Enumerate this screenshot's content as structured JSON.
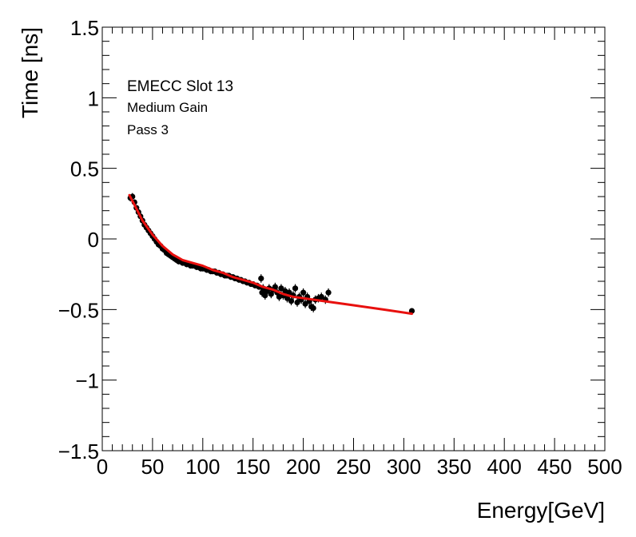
{
  "chart_data": {
    "type": "scatter",
    "title": "",
    "xlabel": "Energy[GeV]",
    "ylabel": "Time [ns]",
    "xlim": [
      0,
      500
    ],
    "ylim": [
      -1.5,
      1.5
    ],
    "x_ticks": [
      0,
      50,
      100,
      150,
      200,
      250,
      300,
      350,
      400,
      450,
      500
    ],
    "x_tick_labels": [
      "0",
      "50",
      "100",
      "150",
      "200",
      "250",
      "300",
      "350",
      "400",
      "450",
      "500"
    ],
    "y_ticks": [
      -1.5,
      -1,
      -0.5,
      0,
      0.5,
      1,
      1.5
    ],
    "y_tick_labels": [
      "−1.5",
      "−1",
      "−0.5",
      "0",
      "0.5",
      "1",
      "1.5"
    ],
    "grid": false,
    "annotations": [
      "EMECC Slot 13",
      "Medium Gain",
      "Pass 3"
    ],
    "series": [
      {
        "name": "data",
        "kind": "points-with-errors",
        "color": "#000000",
        "x": [
          28,
          30,
          32,
          34,
          36,
          38,
          40,
          42,
          44,
          46,
          48,
          50,
          52,
          54,
          56,
          58,
          60,
          62,
          64,
          66,
          68,
          70,
          72,
          74,
          76,
          78,
          80,
          82,
          84,
          86,
          88,
          90,
          92,
          94,
          96,
          98,
          100,
          102,
          104,
          106,
          108,
          110,
          112,
          114,
          116,
          118,
          120,
          122,
          124,
          126,
          128,
          130,
          132,
          134,
          136,
          138,
          140,
          142,
          144,
          146,
          148,
          150,
          152,
          154,
          156,
          158,
          159,
          160,
          162,
          164,
          166,
          168,
          170,
          172,
          174,
          176,
          178,
          180,
          182,
          184,
          186,
          188,
          190,
          192,
          194,
          196,
          198,
          200,
          202,
          204,
          206,
          208,
          210,
          212,
          215,
          218,
          222,
          225,
          308
        ],
        "y": [
          0.29,
          0.3,
          0.26,
          0.22,
          0.19,
          0.16,
          0.13,
          0.1,
          0.08,
          0.06,
          0.04,
          0.02,
          0.0,
          -0.02,
          -0.04,
          -0.05,
          -0.07,
          -0.08,
          -0.1,
          -0.11,
          -0.12,
          -0.13,
          -0.14,
          -0.15,
          -0.16,
          -0.16,
          -0.17,
          -0.17,
          -0.18,
          -0.18,
          -0.19,
          -0.19,
          -0.19,
          -0.2,
          -0.2,
          -0.21,
          -0.21,
          -0.21,
          -0.22,
          -0.22,
          -0.23,
          -0.23,
          -0.23,
          -0.24,
          -0.24,
          -0.25,
          -0.25,
          -0.26,
          -0.26,
          -0.26,
          -0.27,
          -0.27,
          -0.28,
          -0.28,
          -0.29,
          -0.29,
          -0.3,
          -0.3,
          -0.31,
          -0.31,
          -0.32,
          -0.32,
          -0.33,
          -0.33,
          -0.34,
          -0.28,
          -0.38,
          -0.35,
          -0.4,
          -0.37,
          -0.35,
          -0.39,
          -0.36,
          -0.34,
          -0.38,
          -0.41,
          -0.35,
          -0.4,
          -0.37,
          -0.42,
          -0.38,
          -0.44,
          -0.4,
          -0.35,
          -0.45,
          -0.41,
          -0.43,
          -0.38,
          -0.46,
          -0.41,
          -0.44,
          -0.48,
          -0.49,
          -0.43,
          -0.42,
          -0.41,
          -0.43,
          -0.38,
          -0.51
        ],
        "yerr": [
          0.025,
          0.025,
          0.02,
          0.02,
          0.02,
          0.02,
          0.02,
          0.02,
          0.02,
          0.02,
          0.02,
          0.02,
          0.02,
          0.02,
          0.02,
          0.02,
          0.02,
          0.02,
          0.02,
          0.02,
          0.02,
          0.02,
          0.02,
          0.02,
          0.02,
          0.02,
          0.02,
          0.02,
          0.02,
          0.02,
          0.02,
          0.02,
          0.02,
          0.02,
          0.02,
          0.02,
          0.02,
          0.02,
          0.02,
          0.02,
          0.02,
          0.02,
          0.02,
          0.02,
          0.02,
          0.02,
          0.02,
          0.02,
          0.02,
          0.02,
          0.02,
          0.02,
          0.02,
          0.02,
          0.02,
          0.02,
          0.02,
          0.02,
          0.02,
          0.02,
          0.02,
          0.02,
          0.02,
          0.02,
          0.02,
          0.03,
          0.03,
          0.03,
          0.03,
          0.03,
          0.03,
          0.03,
          0.03,
          0.03,
          0.03,
          0.03,
          0.03,
          0.03,
          0.03,
          0.03,
          0.03,
          0.03,
          0.03,
          0.03,
          0.03,
          0.03,
          0.03,
          0.03,
          0.03,
          0.03,
          0.03,
          0.03,
          0.03,
          0.03,
          0.03,
          0.03,
          0.03,
          0.03,
          0.02
        ]
      },
      {
        "name": "fit",
        "kind": "line",
        "color": "#e8100e",
        "x": [
          27,
          30,
          35,
          40,
          45,
          50,
          55,
          60,
          65,
          70,
          75,
          80,
          90,
          100,
          110,
          120,
          130,
          140,
          150,
          160,
          170,
          180,
          190,
          200,
          220,
          250,
          280,
          308
        ],
        "y": [
          0.31,
          0.27,
          0.2,
          0.13,
          0.08,
          0.03,
          -0.01,
          -0.05,
          -0.08,
          -0.11,
          -0.13,
          -0.15,
          -0.17,
          -0.19,
          -0.22,
          -0.24,
          -0.27,
          -0.29,
          -0.31,
          -0.34,
          -0.36,
          -0.39,
          -0.41,
          -0.42,
          -0.44,
          -0.47,
          -0.5,
          -0.53
        ]
      }
    ]
  }
}
